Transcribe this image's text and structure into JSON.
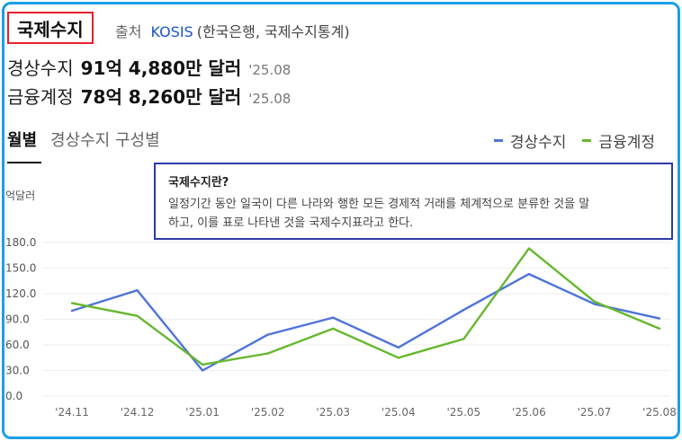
{
  "header": {
    "title": "국제수지",
    "source_label": "출처",
    "source_name": "KOSIS",
    "source_desc": "(한국은행, 국제수지통계)"
  },
  "stats": [
    {
      "label": "경상수지",
      "value": "91억 4,880만 달러",
      "date": "'25.08"
    },
    {
      "label": "금융계정",
      "value": "78억 8,260만 달러",
      "date": "'25.08"
    }
  ],
  "tabs": [
    {
      "label": "월별",
      "active": true
    },
    {
      "label": "경상수지 구성별",
      "active": false
    }
  ],
  "tooltip": {
    "title": "국제수지란?",
    "line1": "일정기간 동안 일국이 다른 나라와 행한 모든 경제적 거래를 체계적으로 분류한 것을 말",
    "line2": "하고, 이를 표로 나타낸 것을 국제수지표라고 한다."
  },
  "chart_data": {
    "type": "line",
    "ylabel": "억달러",
    "ylim": [
      0,
      180
    ],
    "yticks": [
      "0.0",
      "30.0",
      "60.0",
      "90.0",
      "120.0",
      "150.0",
      "180.0"
    ],
    "categories": [
      "'24.11",
      "'24.12",
      "'25.01",
      "'25.02",
      "'25.03",
      "'25.04",
      "'25.05",
      "'25.06",
      "'25.07",
      "'25.08"
    ],
    "series": [
      {
        "name": "경상수지",
        "color": "#4f74d9",
        "values": [
          100,
          124,
          30,
          72,
          92,
          57,
          101,
          143,
          108,
          91
        ]
      },
      {
        "name": "금융계정",
        "color": "#66b82e",
        "values": [
          109,
          94,
          37,
          50,
          79,
          45,
          67,
          173,
          111,
          79
        ]
      }
    ],
    "legend": "top-right",
    "grid": true
  }
}
